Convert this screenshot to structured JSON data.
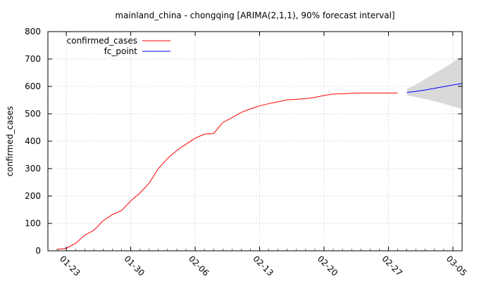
{
  "chart_data": {
    "type": "line",
    "title": "mainland_china - chongqing [ARIMA(2,1,1), 90% forecast interval]",
    "xlabel": "",
    "ylabel": "confirmed_cases",
    "ylim": [
      0,
      800
    ],
    "yticks": [
      0,
      100,
      200,
      300,
      400,
      500,
      600,
      700,
      800
    ],
    "xlim": [
      "2020-01-21",
      "2020-03-06"
    ],
    "xticks": [
      {
        "date": "2020-01-23",
        "label": "01-23"
      },
      {
        "date": "2020-01-30",
        "label": "01-30"
      },
      {
        "date": "2020-02-06",
        "label": "02-06"
      },
      {
        "date": "2020-02-13",
        "label": "02-13"
      },
      {
        "date": "2020-02-20",
        "label": "02-20"
      },
      {
        "date": "2020-02-27",
        "label": "02-27"
      },
      {
        "date": "2020-03-05",
        "label": "03-05"
      }
    ],
    "grid": true,
    "legend_position": "top-left",
    "series": [
      {
        "name": "confirmed_cases",
        "color": "#ff0000",
        "x": [
          "2020-01-22",
          "2020-01-23",
          "2020-01-24",
          "2020-01-25",
          "2020-01-26",
          "2020-01-27",
          "2020-01-28",
          "2020-01-29",
          "2020-01-30",
          "2020-01-31",
          "2020-02-01",
          "2020-02-02",
          "2020-02-03",
          "2020-02-04",
          "2020-02-05",
          "2020-02-06",
          "2020-02-07",
          "2020-02-08",
          "2020-02-09",
          "2020-02-10",
          "2020-02-11",
          "2020-02-12",
          "2020-02-13",
          "2020-02-14",
          "2020-02-15",
          "2020-02-16",
          "2020-02-17",
          "2020-02-18",
          "2020-02-19",
          "2020-02-20",
          "2020-02-21",
          "2020-02-22",
          "2020-02-23",
          "2020-02-24",
          "2020-02-25",
          "2020-02-26",
          "2020-02-27",
          "2020-02-28"
        ],
        "values": [
          5,
          9,
          27,
          57,
          75,
          110,
          132,
          147,
          182,
          211,
          247,
          300,
          337,
          366,
          389,
          411,
          426,
          428,
          468,
          486,
          505,
          518,
          529,
          537,
          544,
          551,
          553,
          555,
          560,
          567,
          572,
          573,
          575,
          576,
          576,
          576,
          576,
          576
        ]
      },
      {
        "name": "fc_point",
        "color": "#0000ff",
        "x": [
          "2020-02-29",
          "2020-03-01",
          "2020-03-02",
          "2020-03-03",
          "2020-03-04",
          "2020-03-05",
          "2020-03-06"
        ],
        "values": [
          578,
          582,
          587,
          593,
          599,
          605,
          611
        ]
      }
    ],
    "forecast_interval": {
      "label": "90% forecast interval",
      "color": "#d9d9d9",
      "x": [
        "2020-02-29",
        "2020-03-01",
        "2020-03-02",
        "2020-03-03",
        "2020-03-04",
        "2020-03-05",
        "2020-03-06"
      ],
      "lower": [
        568,
        561,
        554,
        546,
        537,
        527,
        517
      ],
      "upper": [
        590,
        607,
        627,
        647,
        667,
        688,
        710
      ]
    }
  }
}
